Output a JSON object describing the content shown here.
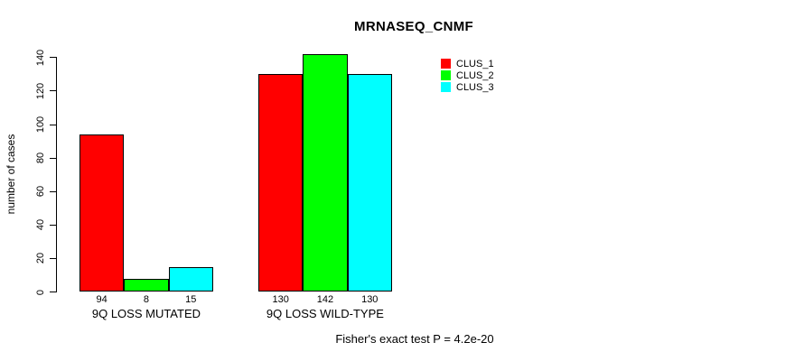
{
  "chart_data": {
    "type": "bar",
    "title": "MRNASEQ_CNMF",
    "categories": [
      "9Q LOSS MUTATED",
      "9Q LOSS WILD-TYPE"
    ],
    "series": [
      {
        "name": "CLUS_1",
        "color": "#ff0000",
        "values": [
          94,
          130
        ]
      },
      {
        "name": "CLUS_2",
        "color": "#00ff00",
        "values": [
          8,
          142
        ]
      },
      {
        "name": "CLUS_3",
        "color": "#00ffff",
        "values": [
          15,
          130
        ]
      }
    ],
    "xlabel": "",
    "ylabel": "number of cases",
    "ylim": [
      0,
      140
    ],
    "yticks": [
      0,
      20,
      40,
      60,
      80,
      100,
      120,
      140
    ],
    "grid": false,
    "bar_value_labels_shown": true,
    "legend_position": "top-right",
    "legend_entries": [
      "CLUS_1",
      "CLUS_2",
      "CLUS_3"
    ],
    "annotation": "Fisher's exact test P = 4.2e-20",
    "background_color": "#ffffff",
    "bar_border_color": "#000000"
  }
}
